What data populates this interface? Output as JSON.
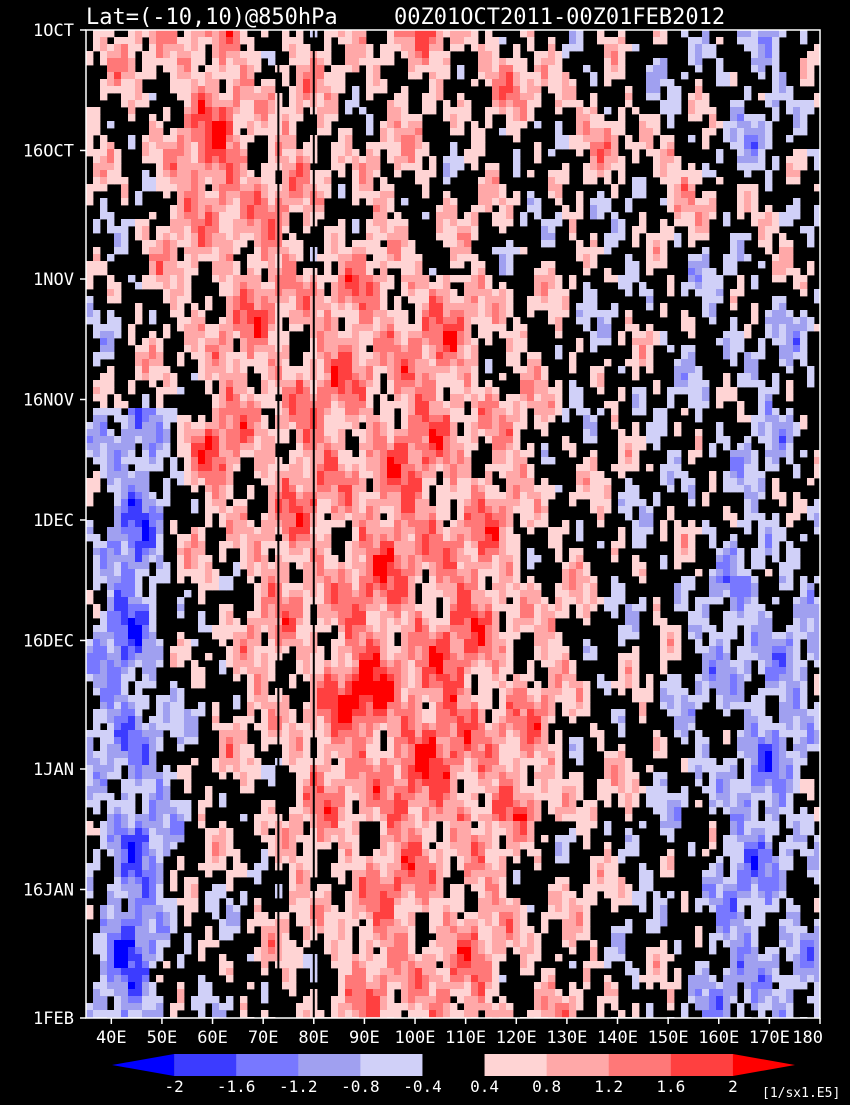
{
  "chart_data": {
    "type": "heatmap",
    "title_left": "Lat=(-10,10)@850hPa",
    "title_right": "00Z01OCT2011-00Z01FEB2012",
    "x_axis": {
      "range": [
        35,
        180
      ],
      "tick_values": [
        40,
        50,
        60,
        70,
        80,
        90,
        100,
        110,
        120,
        130,
        140,
        150,
        160,
        170,
        180
      ],
      "tick_labels": [
        "40E",
        "50E",
        "60E",
        "70E",
        "80E",
        "90E",
        "100E",
        "110E",
        "120E",
        "130E",
        "140E",
        "150E",
        "160E",
        "170E",
        "180"
      ]
    },
    "y_axis": {
      "range": [
        "2011-10-01",
        "2012-02-01"
      ],
      "reversed": true,
      "tick_values": [
        "2011-10-01",
        "2011-10-16",
        "2011-11-01",
        "2011-11-16",
        "2011-12-01",
        "2011-12-16",
        "2012-01-01",
        "2012-01-16",
        "2012-02-01"
      ],
      "tick_labels": [
        "1OCT",
        "16OCT",
        "1NOV",
        "16NOV",
        "1DEC",
        "16DEC",
        "1JAN",
        "16JAN",
        "1FEB"
      ]
    },
    "reference_lines_lon": [
      73,
      80
    ],
    "colorbar": {
      "levels": [
        -2,
        -1.6,
        -1.2,
        -0.8,
        -0.4,
        0.4,
        0.8,
        1.2,
        1.6,
        2
      ],
      "level_labels": [
        "-2",
        "-1.6",
        "-1.2",
        "-0.8",
        "-0.4",
        "0.4",
        "0.8",
        "1.2",
        "1.6",
        "2"
      ],
      "colors": [
        "#0000ff",
        "#3c3cff",
        "#7878ff",
        "#a0a0f0",
        "#d0d0f8",
        "#000000",
        "#ffd4d4",
        "#ffa8a8",
        "#ff7878",
        "#ff4040",
        "#ff0000"
      ],
      "units": "[1/sx1.E5]"
    },
    "description_features": {
      "western_band_negative": {
        "lon_range": [
          38,
          52
        ],
        "date_range": [
          "2011-11-20",
          "2012-02-01"
        ]
      },
      "strong_positive_max": {
        "lon": 92,
        "date": "2011-12-24"
      },
      "eastward_propagating_positive": {
        "from": {
          "lon": 60,
          "date": "2011-10-16"
        },
        "to": {
          "lon": 150,
          "date": "2011-11-16"
        }
      }
    }
  }
}
